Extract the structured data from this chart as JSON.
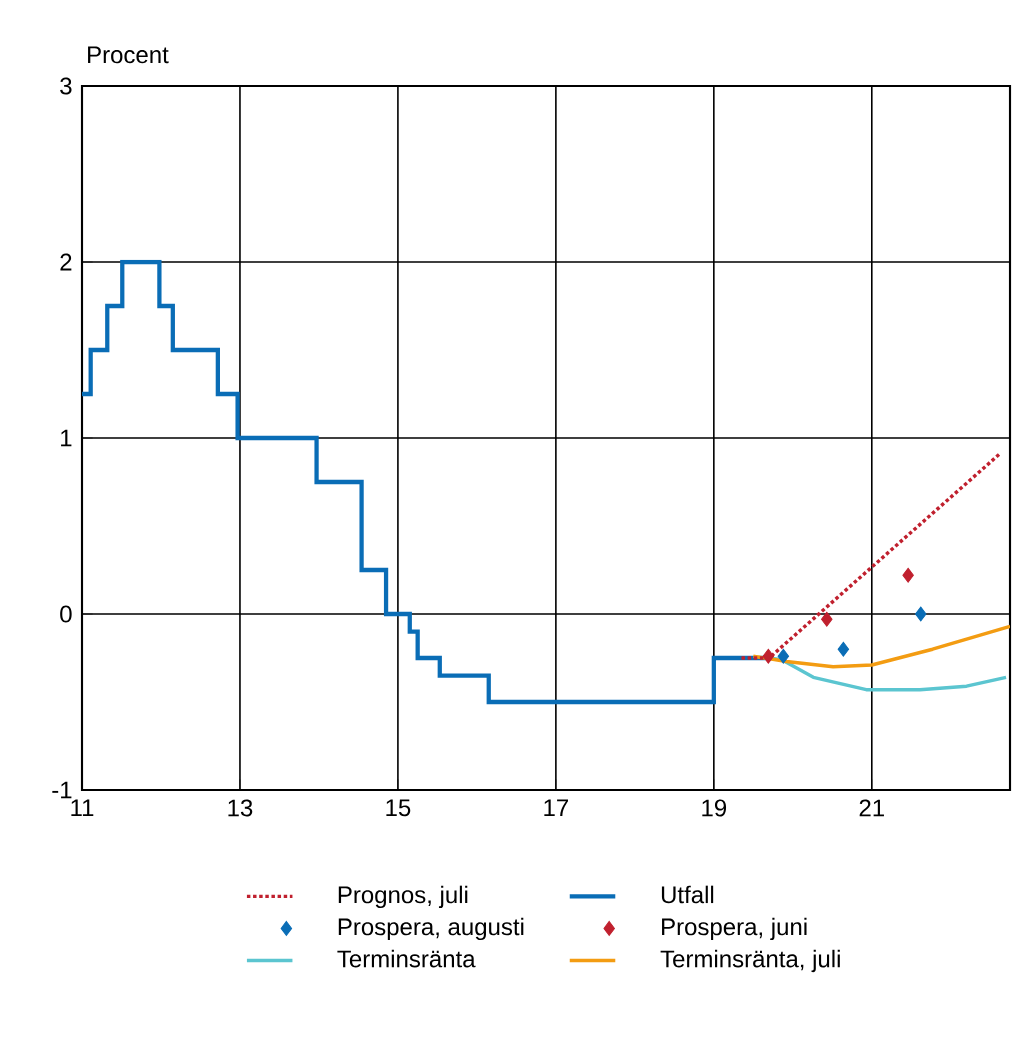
{
  "chart_data": {
    "type": "line",
    "ylabel": "Procent",
    "xlim": [
      11,
      22.75
    ],
    "ylim": [
      -1,
      3
    ],
    "xticks": [
      11,
      13,
      15,
      17,
      19,
      21
    ],
    "yticks": [
      -1,
      0,
      1,
      2,
      3
    ],
    "grid": true,
    "legend": "bottom",
    "series": [
      {
        "name": "Prognos, juli",
        "line_style": "dotted",
        "color": "#c0202e",
        "x": [
          19.35,
          19.7,
          22.62
        ],
        "values": [
          -0.25,
          -0.25,
          0.91
        ]
      },
      {
        "name": "Utfall",
        "type": "step",
        "color": "#0a6db6",
        "x": [
          11,
          11.11,
          11.32,
          11.51,
          11.98,
          12.15,
          12.72,
          12.97,
          13.97,
          14.54,
          14.85,
          15.15,
          15.25,
          15.53,
          16.15,
          19.0,
          19.7
        ],
        "values": [
          1.25,
          1.5,
          1.75,
          2.0,
          1.75,
          1.5,
          1.25,
          1.0,
          0.75,
          0.25,
          0,
          -0.1,
          -0.25,
          -0.35,
          -0.5,
          -0.25,
          -0.25
        ]
      },
      {
        "name": "Prospera, augusti",
        "type": "scatter",
        "marker": "diamond",
        "color": "#0a6db6",
        "x": [
          19.88,
          20.64,
          21.62
        ],
        "values": [
          -0.24,
          -0.2,
          0.0
        ]
      },
      {
        "name": "Prospera, juni",
        "type": "scatter",
        "marker": "diamond",
        "color": "#c0202e",
        "x": [
          19.69,
          20.43,
          21.46
        ],
        "values": [
          -0.24,
          -0.03,
          0.22
        ]
      },
      {
        "name": "Terminsränta",
        "line_style": "solid",
        "color": "#5bc5d0",
        "x": [
          19.7,
          19.86,
          20.26,
          20.93,
          21.61,
          22.2,
          22.7
        ],
        "values": [
          -0.25,
          -0.26,
          -0.36,
          -0.43,
          -0.43,
          -0.41,
          -0.36
        ]
      },
      {
        "name": "Terminsränta, juli",
        "line_style": "solid",
        "color": "#f39c12",
        "x": [
          19.5,
          19.92,
          20.51,
          21.0,
          21.77,
          22.75
        ],
        "values": [
          -0.24,
          -0.27,
          -0.3,
          -0.29,
          -0.2,
          -0.07
        ]
      }
    ]
  }
}
